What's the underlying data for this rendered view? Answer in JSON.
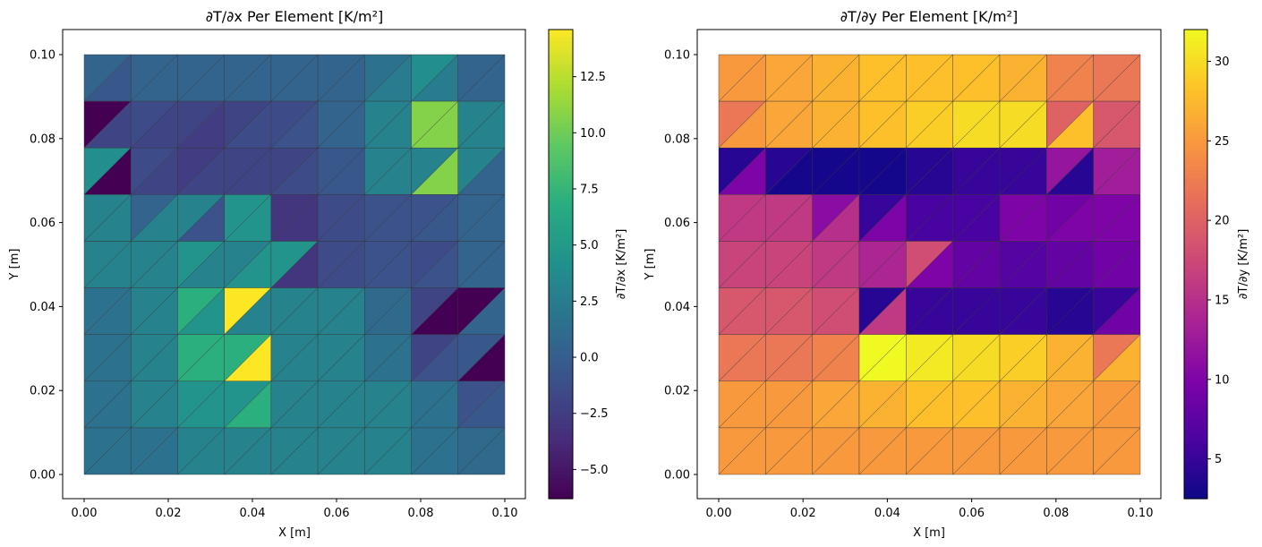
{
  "chart_data": [
    {
      "type": "heatmap",
      "title": "∂T/∂x Per Element [K/m²]",
      "xlabel": "X [m]",
      "ylabel": "Y [m]",
      "colorbar_label": "∂T/∂x [K/m²]",
      "colormap": "viridis",
      "xlim": [
        0.0,
        0.1
      ],
      "ylim": [
        0.0,
        0.1
      ],
      "xticks": [
        "0.00",
        "0.02",
        "0.04",
        "0.06",
        "0.08",
        "0.10"
      ],
      "yticks": [
        "0.00",
        "0.02",
        "0.04",
        "0.06",
        "0.08",
        "0.10"
      ],
      "colorbar_ticks": [
        {
          "value": -5.0,
          "label": "−5.0"
        },
        {
          "value": -2.5,
          "label": "−2.5"
        },
        {
          "value": 0.0,
          "label": "0.0"
        },
        {
          "value": 2.5,
          "label": "2.5"
        },
        {
          "value": 5.0,
          "label": "5.0"
        },
        {
          "value": 7.5,
          "label": "7.5"
        },
        {
          "value": 10.0,
          "label": "10.0"
        },
        {
          "value": 12.5,
          "label": "12.5"
        }
      ],
      "vmin": -6.3,
      "vmax": 14.6,
      "grid_n": 9,
      "rows_order": "top row first; each row lists 9 cells left-to-right; each cell = [upper-left triangle, lower-right triangle]",
      "values": [
        [
          [
            0.5,
            -0.5
          ],
          [
            0.5,
            0.5
          ],
          [
            0.5,
            0.5
          ],
          [
            0.5,
            0.5
          ],
          [
            0.5,
            0.5
          ],
          [
            0.5,
            0.5
          ],
          [
            1.5,
            2.5
          ],
          [
            4.0,
            2.5
          ],
          [
            0.5,
            0.5
          ]
        ],
        [
          [
            -6.3,
            -2.0
          ],
          [
            -1.5,
            -2.0
          ],
          [
            -2.0,
            -2.5
          ],
          [
            -2.0,
            -1.5
          ],
          [
            -1.5,
            -1.0
          ],
          [
            0.5,
            0.5
          ],
          [
            3.0,
            3.0
          ],
          [
            10.7,
            10.7
          ],
          [
            3.0,
            3.0
          ]
        ],
        [
          [
            4.0,
            -6.3
          ],
          [
            -1.5,
            -2.0
          ],
          [
            -2.5,
            -2.0
          ],
          [
            -2.0,
            -2.0
          ],
          [
            -2.0,
            -1.5
          ],
          [
            -0.5,
            -0.5
          ],
          [
            3.0,
            3.0
          ],
          [
            3.0,
            10.7
          ],
          [
            3.0,
            0.5
          ]
        ],
        [
          [
            3.0,
            3.0
          ],
          [
            0.5,
            3.0
          ],
          [
            3.0,
            -1.0
          ],
          [
            4.5,
            4.5
          ],
          [
            -3.0,
            -3.0
          ],
          [
            -1.5,
            -1.5
          ],
          [
            -1.0,
            -1.0
          ],
          [
            -1.0,
            -0.5
          ],
          [
            0.5,
            0.5
          ]
        ],
        [
          [
            3.0,
            3.0
          ],
          [
            3.0,
            3.0
          ],
          [
            4.5,
            3.0
          ],
          [
            3.0,
            4.5
          ],
          [
            4.5,
            -3.0
          ],
          [
            -1.5,
            -1.5
          ],
          [
            -1.0,
            -1.0
          ],
          [
            -1.5,
            -1.0
          ],
          [
            0.5,
            0.5
          ]
        ],
        [
          [
            1.5,
            1.5
          ],
          [
            3.0,
            3.0
          ],
          [
            7.0,
            4.5
          ],
          [
            14.6,
            3.0
          ],
          [
            3.0,
            3.0
          ],
          [
            3.0,
            3.0
          ],
          [
            1.0,
            1.0
          ],
          [
            -2.0,
            -6.3
          ],
          [
            -6.3,
            0.5
          ]
        ],
        [
          [
            1.5,
            1.5
          ],
          [
            3.0,
            3.0
          ],
          [
            7.0,
            7.0
          ],
          [
            7.0,
            14.6
          ],
          [
            3.0,
            3.0
          ],
          [
            3.0,
            3.0
          ],
          [
            1.5,
            1.5
          ],
          [
            -2.0,
            -1.0
          ],
          [
            -0.5,
            -6.3
          ]
        ],
        [
          [
            1.5,
            1.5
          ],
          [
            3.0,
            3.0
          ],
          [
            4.5,
            4.5
          ],
          [
            4.5,
            7.0
          ],
          [
            3.0,
            3.0
          ],
          [
            3.0,
            3.0
          ],
          [
            3.0,
            3.0
          ],
          [
            1.5,
            1.5
          ],
          [
            -1.0,
            -0.5
          ]
        ],
        [
          [
            1.5,
            1.5
          ],
          [
            1.5,
            1.5
          ],
          [
            3.0,
            3.0
          ],
          [
            3.0,
            3.0
          ],
          [
            3.0,
            3.0
          ],
          [
            3.0,
            3.0
          ],
          [
            3.0,
            3.0
          ],
          [
            1.5,
            1.5
          ],
          [
            1.0,
            1.0
          ]
        ]
      ]
    },
    {
      "type": "heatmap",
      "title": "∂T/∂y Per Element [K/m²]",
      "xlabel": "X [m]",
      "ylabel": "Y [m]",
      "colorbar_label": "∂T/∂y [K/m²]",
      "colormap": "plasma",
      "xlim": [
        0.0,
        0.1
      ],
      "ylim": [
        0.0,
        0.1
      ],
      "xticks": [
        "0.00",
        "0.02",
        "0.04",
        "0.06",
        "0.08",
        "0.10"
      ],
      "yticks": [
        "0.00",
        "0.02",
        "0.04",
        "0.06",
        "0.08",
        "0.10"
      ],
      "colorbar_ticks": [
        {
          "value": 5,
          "label": "5"
        },
        {
          "value": 10,
          "label": "10"
        },
        {
          "value": 15,
          "label": "15"
        },
        {
          "value": 20,
          "label": "20"
        },
        {
          "value": 25,
          "label": "25"
        },
        {
          "value": 30,
          "label": "30"
        }
      ],
      "vmin": 2.5,
      "vmax": 32.0,
      "grid_n": 9,
      "rows_order": "top row first; each row lists 9 cells left-to-right; each cell = [upper-left triangle, lower-right triangle]",
      "values": [
        [
          [
            25,
            25
          ],
          [
            26,
            26
          ],
          [
            27,
            27
          ],
          [
            28,
            28
          ],
          [
            28,
            28
          ],
          [
            28,
            28
          ],
          [
            27,
            27
          ],
          [
            23,
            23
          ],
          [
            22,
            22
          ]
        ],
        [
          [
            22,
            25
          ],
          [
            26,
            26
          ],
          [
            27,
            27
          ],
          [
            28,
            28
          ],
          [
            29,
            29
          ],
          [
            30,
            30
          ],
          [
            30,
            30
          ],
          [
            20,
            28
          ],
          [
            19,
            19
          ]
        ],
        [
          [
            4,
            10
          ],
          [
            4,
            3
          ],
          [
            3,
            3
          ],
          [
            3,
            3
          ],
          [
            4,
            4
          ],
          [
            5,
            5
          ],
          [
            5,
            5
          ],
          [
            12,
            4
          ],
          [
            13,
            13
          ]
        ],
        [
          [
            16,
            16
          ],
          [
            16,
            16
          ],
          [
            11,
            15
          ],
          [
            5,
            10
          ],
          [
            6,
            6
          ],
          [
            6,
            6
          ],
          [
            10,
            10
          ],
          [
            9,
            10
          ],
          [
            10,
            10
          ]
        ],
        [
          [
            17,
            17
          ],
          [
            17,
            17
          ],
          [
            16,
            16
          ],
          [
            14,
            14
          ],
          [
            18,
            10
          ],
          [
            8,
            8
          ],
          [
            7,
            7
          ],
          [
            8,
            8
          ],
          [
            9,
            9
          ]
        ],
        [
          [
            19,
            19
          ],
          [
            19,
            19
          ],
          [
            18,
            18
          ],
          [
            4,
            16
          ],
          [
            5,
            5
          ],
          [
            5,
            5
          ],
          [
            5,
            5
          ],
          [
            4,
            4
          ],
          [
            5,
            9
          ]
        ],
        [
          [
            22,
            22
          ],
          [
            22,
            22
          ],
          [
            23,
            23
          ],
          [
            32,
            32
          ],
          [
            31,
            31
          ],
          [
            30,
            30
          ],
          [
            29,
            29
          ],
          [
            27,
            27
          ],
          [
            22,
            27
          ]
        ],
        [
          [
            25,
            25
          ],
          [
            25,
            25
          ],
          [
            26,
            26
          ],
          [
            27,
            27
          ],
          [
            28,
            28
          ],
          [
            28,
            28
          ],
          [
            27,
            27
          ],
          [
            26,
            26
          ],
          [
            25,
            25
          ]
        ],
        [
          [
            25,
            25
          ],
          [
            25,
            25
          ],
          [
            25,
            25
          ],
          [
            25,
            25
          ],
          [
            25,
            25
          ],
          [
            25,
            25
          ],
          [
            25,
            25
          ],
          [
            25,
            25
          ],
          [
            25,
            25
          ]
        ]
      ]
    }
  ]
}
